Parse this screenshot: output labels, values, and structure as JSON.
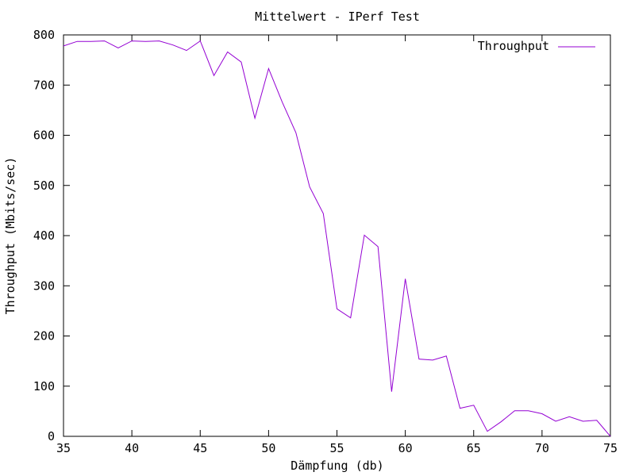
{
  "chart_data": {
    "type": "line",
    "title": "Mittelwert - IPerf Test",
    "xlabel": "Dämpfung (db)",
    "ylabel": "Throughput (Mbits/sec)",
    "xlim": [
      35,
      75
    ],
    "ylim": [
      0,
      800
    ],
    "xticks": [
      35,
      40,
      45,
      50,
      55,
      60,
      65,
      70,
      75
    ],
    "yticks": [
      0,
      100,
      200,
      300,
      400,
      500,
      600,
      700,
      800
    ],
    "grid": false,
    "legend_position": "top-right",
    "series": [
      {
        "name": "Throughput",
        "color": "#9400d3",
        "x": [
          35,
          36,
          37,
          38,
          39,
          40,
          41,
          42,
          43,
          44,
          45,
          46,
          47,
          48,
          49,
          50,
          51,
          52,
          53,
          54,
          55,
          56,
          57,
          58,
          59,
          60,
          61,
          62,
          63,
          64,
          65,
          66,
          67,
          68,
          69,
          70,
          71,
          72,
          73,
          74,
          75
        ],
        "y": [
          778,
          787,
          787,
          788,
          774,
          788,
          787,
          788,
          780,
          769,
          788,
          719,
          766,
          746,
          634,
          733,
          666,
          605,
          497,
          444,
          254,
          236,
          401,
          378,
          89,
          314,
          154,
          152,
          160,
          56,
          62,
          10,
          29,
          51,
          51,
          45,
          30,
          39,
          30,
          32,
          0
        ]
      }
    ]
  }
}
